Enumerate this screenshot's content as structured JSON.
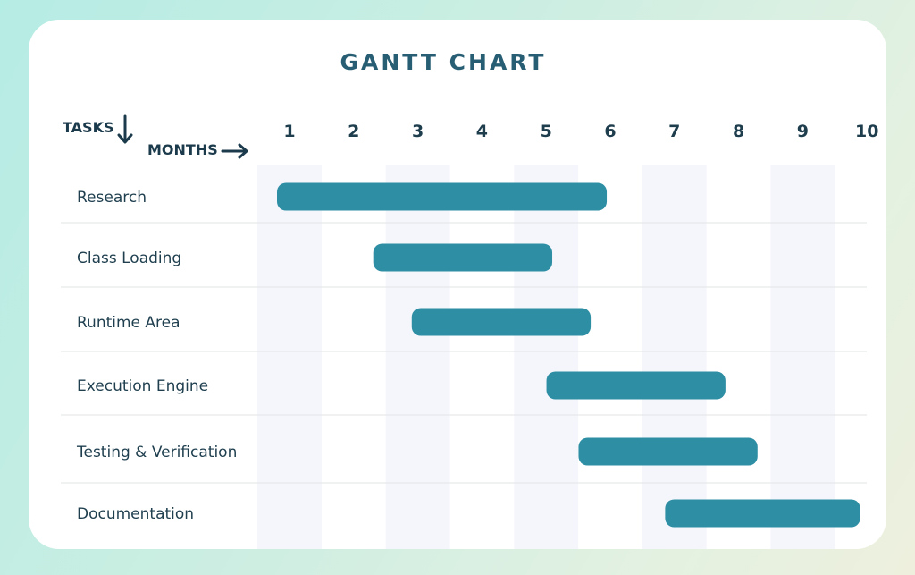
{
  "chart_data": {
    "type": "gantt",
    "title": "GANTT CHART",
    "y_header": "TASKS",
    "x_header": "MONTHS",
    "months": [
      "1",
      "2",
      "3",
      "4",
      "5",
      "6",
      "7",
      "8",
      "9",
      "10"
    ],
    "tasks": [
      {
        "name": "Research",
        "start": 1.0,
        "end": 5.75
      },
      {
        "name": "Class Loading",
        "start": 2.5,
        "end": 4.9
      },
      {
        "name": "Runtime Area",
        "start": 3.1,
        "end": 5.5
      },
      {
        "name": "Execution Engine",
        "start": 5.2,
        "end": 7.6
      },
      {
        "name": "Testing & Verification",
        "start": 5.7,
        "end": 8.1
      },
      {
        "name": "Documentation",
        "start": 7.05,
        "end": 9.7
      }
    ],
    "grid": true,
    "colors": {
      "bar": "#2e8ea4",
      "band": "#f4f6fc",
      "divider": "#e2e4e6",
      "text": "#1f3f4f"
    }
  }
}
